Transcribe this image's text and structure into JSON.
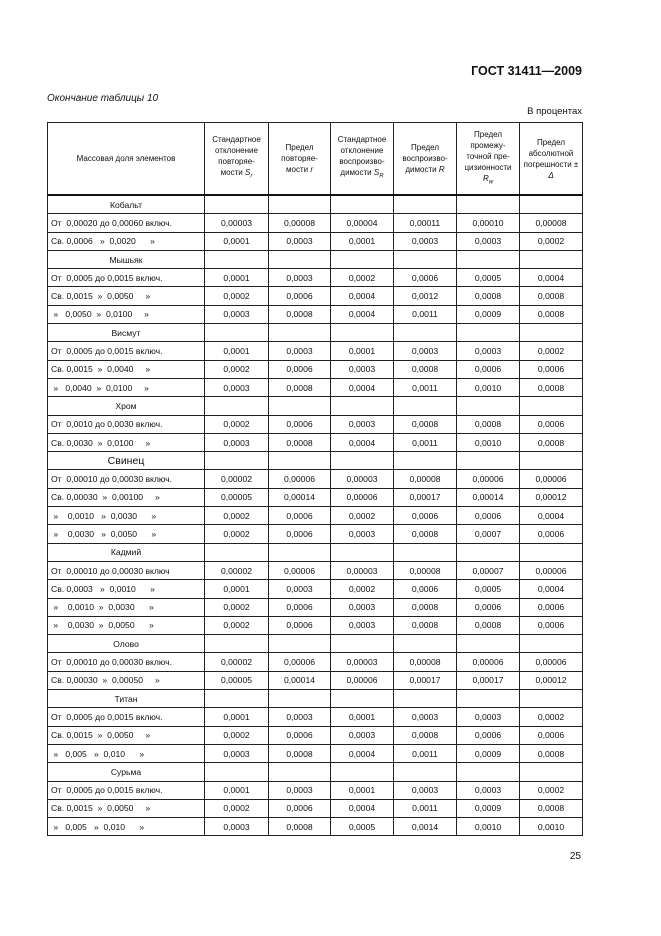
{
  "standard": "ГОСТ 31411—2009",
  "caption": "Окончание таблицы 10",
  "units": "В процентах",
  "page_number": "25",
  "headers": [
    {
      "text": "Массовая доля элементов"
    },
    {
      "text": "Стандартное отклонение повторяе-мости ",
      "sym": "S",
      "sub": "r"
    },
    {
      "text": "Предел повторяе-мости ",
      "sym": "r",
      "sub": ""
    },
    {
      "text": "Стандартное отклонение воспроизво-димости ",
      "sym": "S",
      "sub": "R"
    },
    {
      "text": "Предел воспроизво-димости ",
      "sym": "R",
      "sub": ""
    },
    {
      "text": "Предел промежу-точной пре-цизионности ",
      "sym": "R",
      "sub": "w"
    },
    {
      "text": "Предел абсолютной погрешности ",
      "sym": "± Δ",
      "sub": ""
    }
  ],
  "rows": [
    {
      "group": "Кобальт"
    },
    {
      "label": "От  0,00020 до 0,00060 включ.",
      "values": [
        "0,00003",
        "0,00008",
        "0,00004",
        "0,00011",
        "0,00010",
        "0,00008"
      ]
    },
    {
      "label": "Св. 0,0006   »  0,0020      »",
      "values": [
        "0,0001",
        "0,0003",
        "0,0001",
        "0,0003",
        "0,0003",
        "0,0002"
      ]
    },
    {
      "group": "Мышьяк"
    },
    {
      "label": "От  0,0005 до 0,0015 включ.",
      "values": [
        "0,0001",
        "0,0003",
        "0,0002",
        "0,0006",
        "0,0005",
        "0,0004"
      ]
    },
    {
      "label": "Св. 0,0015  »  0,0050     »",
      "values": [
        "0,0002",
        "0,0006",
        "0,0004",
        "0,0012",
        "0,0008",
        "0,0008"
      ]
    },
    {
      "label": " »   0,0050  »  0,0100     »",
      "values": [
        "0,0003",
        "0,0008",
        "0,0004",
        "0,0011",
        "0,0009",
        "0,0008"
      ]
    },
    {
      "group": "Висмут"
    },
    {
      "label": "От  0,0005 до 0,0015 включ.",
      "values": [
        "0,0001",
        "0,0003",
        "0,0001",
        "0,0003",
        "0,0003",
        "0,0002"
      ]
    },
    {
      "label": "Св. 0,0015  »  0,0040     »",
      "values": [
        "0,0002",
        "0,0006",
        "0,0003",
        "0,0008",
        "0,0006",
        "0,0006"
      ]
    },
    {
      "label": " »   0,0040  »  0,0100     »",
      "values": [
        "0,0003",
        "0,0008",
        "0,0004",
        "0,0011",
        "0,0010",
        "0,0008"
      ]
    },
    {
      "group": "Хром"
    },
    {
      "label": "От  0,0010 до 0,0030 включ.",
      "values": [
        "0,0002",
        "0,0006",
        "0,0003",
        "0,0008",
        "0,0008",
        "0,0006"
      ]
    },
    {
      "label": "Св. 0,0030  »  0,0100     »",
      "values": [
        "0,0003",
        "0,0008",
        "0,0004",
        "0,0011",
        "0,0010",
        "0,0008"
      ]
    },
    {
      "group": "Свинец",
      "big": true
    },
    {
      "label": "От  0,00010 до 0,00030 включ.",
      "values": [
        "0,00002",
        "0,00006",
        "0,00003",
        "0,00008",
        "0,00006",
        "0,00006"
      ]
    },
    {
      "label": "Св. 0,00030  »  0,00100     »",
      "values": [
        "0,00005",
        "0,00014",
        "0,00006",
        "0,00017",
        "0,00014",
        "0,00012"
      ]
    },
    {
      "label": " »    0,0010   »  0,0030      »",
      "values": [
        "0,0002",
        "0,0006",
        "0,0002",
        "0,0006",
        "0,0006",
        "0,0004"
      ]
    },
    {
      "label": " »    0,0030   »  0,0050      »",
      "values": [
        "0,0002",
        "0,0006",
        "0,0003",
        "0,0008",
        "0,0007",
        "0,0006"
      ]
    },
    {
      "group": "Кадмий"
    },
    {
      "label": "От  0,00010 до 0,00030 включ",
      "values": [
        "0,00002",
        "0,00006",
        "0,00003",
        "0,00008",
        "0,00007",
        "0,00006"
      ]
    },
    {
      "label": "Св. 0,0003   »  0,0010      »",
      "values": [
        "0,0001",
        "0,0003",
        "0,0002",
        "0,0006",
        "0,0005",
        "0,0004"
      ]
    },
    {
      "label": " »    0,0010  »  0,0030      »",
      "values": [
        "0,0002",
        "0,0006",
        "0,0003",
        "0,0008",
        "0,0006",
        "0,0006"
      ]
    },
    {
      "label": " »    0,0030  »  0,0050      »",
      "values": [
        "0,0002",
        "0,0006",
        "0,0003",
        "0,0008",
        "0,0008",
        "0,0006"
      ]
    },
    {
      "group": "Олово"
    },
    {
      "label": "От  0,00010 до 0,00030 включ.",
      "values": [
        "0,00002",
        "0,00006",
        "0,00003",
        "0,00008",
        "0,00006",
        "0,00006"
      ]
    },
    {
      "label": "Св. 0,00030  »  0,00050     »",
      "values": [
        "0,00005",
        "0,00014",
        "0,00006",
        "0,00017",
        "0,00017",
        "0,00012"
      ]
    },
    {
      "group": "Титан"
    },
    {
      "label": "От  0,0005 до 0,0015 включ.",
      "values": [
        "0,0001",
        "0,0003",
        "0,0001",
        "0,0003",
        "0,0003",
        "0,0002"
      ]
    },
    {
      "label": "Св. 0,0015  »  0,0050     »",
      "values": [
        "0,0002",
        "0,0006",
        "0,0003",
        "0,0008",
        "0,0006",
        "0,0006"
      ]
    },
    {
      "label": " »   0,005   »  0,010      »",
      "values": [
        "0,0003",
        "0,0008",
        "0,0004",
        "0,0011",
        "0,0009",
        "0,0008"
      ]
    },
    {
      "group": "Сурьма"
    },
    {
      "label": "От  0,0005 до 0,0015 включ.",
      "values": [
        "0,0001",
        "0,0003",
        "0,0001",
        "0,0003",
        "0,0003",
        "0,0002"
      ]
    },
    {
      "label": "Св. 0,0015  »  0,0050     »",
      "values": [
        "0,0002",
        "0,0006",
        "0,0004",
        "0,0011",
        "0,0009",
        "0,0008"
      ]
    },
    {
      "label": " »   0,005   »  0,010      »",
      "values": [
        "0,0003",
        "0,0008",
        "0,0005",
        "0,0014",
        "0,0010",
        "0,0010"
      ]
    }
  ]
}
